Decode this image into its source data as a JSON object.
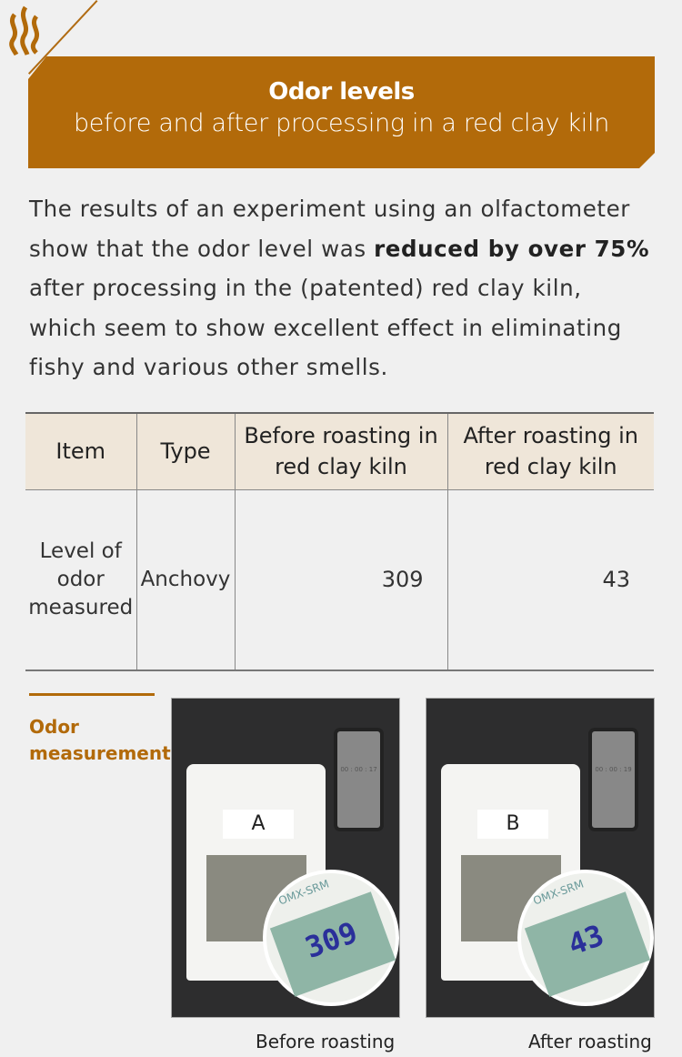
{
  "header": {
    "icon": "steam-odor-icon",
    "title": "Odor levels",
    "subtitle": "before and after processing in a red clay kiln"
  },
  "intro": {
    "before": "The results of an experiment using an olfactometer show that the odor level was ",
    "bold": "reduced by over 75%",
    "after": " after processing in the (patented) red clay kiln, which seem to show excellent effect in eliminating fishy and various other smells."
  },
  "table": {
    "headers": [
      "Item",
      "Type",
      "Before roasting in red clay kiln",
      "After roasting in red clay kiln"
    ],
    "rows": [
      {
        "item": "Level of odor measured",
        "type": "Anchovy",
        "before": "309",
        "after": "43"
      }
    ]
  },
  "section": {
    "label": "Odor measurement"
  },
  "photos": [
    {
      "tag": "A",
      "brand": "OMX-SRM",
      "reading": "309",
      "timer": "00 : 00 : 17",
      "caption": "Before roasting"
    },
    {
      "tag": "B",
      "brand": "OMX-SRM",
      "reading": "43",
      "timer": "00 : 00 : 19",
      "caption": "After roasting"
    }
  ],
  "colors": {
    "accent": "#b26a0a",
    "table_header": "#efe6d9",
    "background": "#f0f0f0"
  }
}
